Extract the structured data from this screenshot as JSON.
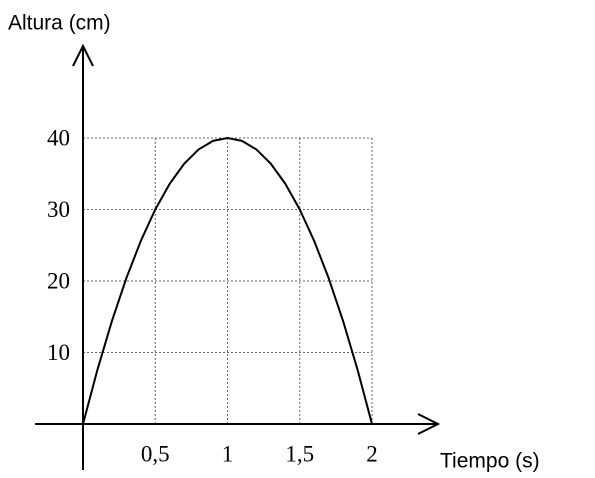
{
  "chart_data": {
    "type": "line",
    "y_label": "Altura (cm)",
    "x_label": "Tiempo (s)",
    "x": [
      0,
      0.1,
      0.2,
      0.3,
      0.4,
      0.5,
      0.6,
      0.7,
      0.8,
      0.9,
      1,
      1.1,
      1.2,
      1.3,
      1.4,
      1.5,
      1.6,
      1.7,
      1.8,
      1.9,
      2
    ],
    "values": [
      0,
      7.6,
      14.4,
      20.4,
      25.6,
      30,
      33.6,
      36.4,
      38.4,
      39.6,
      40,
      39.6,
      38.4,
      36.4,
      33.6,
      30,
      25.6,
      20.4,
      14.4,
      7.6,
      0
    ],
    "color": "#000000",
    "xlim": [
      0,
      2
    ],
    "ylim": [
      0,
      40
    ],
    "xticks": [
      {
        "value": 0.5,
        "label": "0,5"
      },
      1,
      {
        "value": 1.5,
        "label": "1,5"
      },
      2
    ],
    "yticks": [
      10,
      20,
      30,
      40
    ],
    "grid": true
  }
}
